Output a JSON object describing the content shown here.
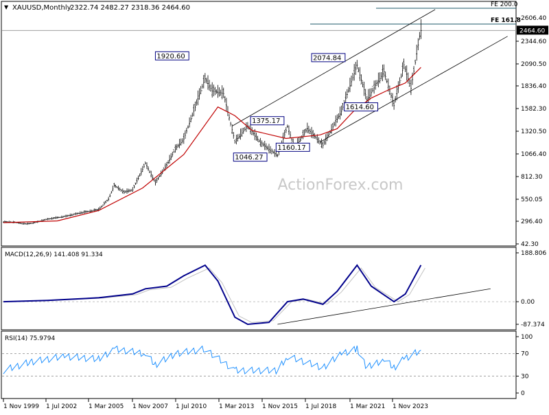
{
  "header": {
    "symbol_label": "XAUUSD,Monthly",
    "ohlc": "2322.74 2482.27 2318.36 2464.60",
    "dropdown_glyph": "▼"
  },
  "watermark": "ActionForex.com",
  "colors": {
    "background": "#ffffff",
    "frame": "#000000",
    "bars": "#000000",
    "ma": "#c00000",
    "channel": "#000000",
    "macd_line": "#00008b",
    "macd_signal": "#c0c0c0",
    "rsi_line": "#1e90ff",
    "level_dash": "#a0a0a0",
    "current_price_bg": "#000000",
    "current_price_fg": "#ffffff",
    "label_border": "#000080",
    "label_text": "#000000",
    "fe_line": "#1e5a6a",
    "watermark": "#c8c8c8"
  },
  "main_chart": {
    "y_ticks": [
      42.3,
      296.4,
      550.05,
      812.3,
      1066.4,
      1320.5,
      1582.3,
      1836.4,
      2090.5,
      2344.6,
      2606.4
    ],
    "y_tick_labels": [
      "42.30",
      "296.40",
      "550.05",
      "812.30",
      "1066.40",
      "1320.50",
      "1582.30",
      "1836.40",
      "2090.50",
      "2344.60",
      "2606.40"
    ],
    "current_price": "2464.60",
    "fe_200_label": "FE 200.0",
    "fe_161_label": "FE 161.8",
    "annotations": [
      "1920.60",
      "1375.17",
      "1046.27",
      "1160.17",
      "2074.84",
      "1614.60"
    ]
  },
  "macd_panel": {
    "label": "MACD(12,26,9) 141.408 91.334",
    "y_tick_labels": [
      "188.806",
      "0.00",
      "-87.374"
    ]
  },
  "rsi_panel": {
    "label": "RSI(14) 75.9794",
    "y_tick_labels": [
      "100",
      "70",
      "30",
      "0"
    ]
  },
  "x_axis": {
    "labels": [
      "1 Nov 1999",
      "1 Jul 2002",
      "1 Mar 2005",
      "1 Nov 2007",
      "1 Jul 2010",
      "1 Mar 2013",
      "1 Nov 2015",
      "1 Jul 2018",
      "1 Mar 2021",
      "1 Nov 2023"
    ]
  },
  "chart_data": {
    "type": "line",
    "title": "XAUUSD,Monthly",
    "x_labels": [
      "1 Nov 1999",
      "1 Jul 2002",
      "1 Mar 2005",
      "1 Nov 2007",
      "1 Jul 2010",
      "1 Mar 2013",
      "1 Nov 2015",
      "1 Jul 2018",
      "1 Mar 2021",
      "1 Nov 2023"
    ],
    "ylim": [
      42.3,
      2700
    ],
    "grid": false,
    "price_path": [
      [
        "1999-11",
        290
      ],
      [
        "2000-06",
        285
      ],
      [
        "2001-03",
        265
      ],
      [
        "2001-09",
        280
      ],
      [
        "2002-06",
        320
      ],
      [
        "2003-06",
        350
      ],
      [
        "2004-06",
        395
      ],
      [
        "2005-06",
        430
      ],
      [
        "2006-01",
        550
      ],
      [
        "2006-05",
        710
      ],
      [
        "2006-12",
        630
      ],
      [
        "2007-06",
        660
      ],
      [
        "2008-03",
        960
      ],
      [
        "2008-10",
        740
      ],
      [
        "2009-06",
        940
      ],
      [
        "2009-12",
        1120
      ],
      [
        "2010-06",
        1230
      ],
      [
        "2011-09",
        1920.6
      ],
      [
        "2012-02",
        1780
      ],
      [
        "2012-10",
        1750
      ],
      [
        "2013-06",
        1200
      ],
      [
        "2014-03",
        1380
      ],
      [
        "2014-12",
        1190
      ],
      [
        "2015-12",
        1046.27
      ],
      [
        "2016-07",
        1375.17
      ],
      [
        "2016-12",
        1130
      ],
      [
        "2017-09",
        1350
      ],
      [
        "2018-08",
        1160.17
      ],
      [
        "2019-09",
        1550
      ],
      [
        "2020-08",
        2074.84
      ],
      [
        "2021-03",
        1680
      ],
      [
        "2022-03",
        2000
      ],
      [
        "2022-10",
        1614.6
      ],
      [
        "2023-05",
        2080
      ],
      [
        "2023-10",
        1810
      ],
      [
        "2024-04",
        2400
      ],
      [
        "2024-05",
        2464.6
      ]
    ],
    "ma_path": [
      [
        "1999-11",
        280
      ],
      [
        "2003-01",
        300
      ],
      [
        "2005-06",
        420
      ],
      [
        "2008-01",
        680
      ],
      [
        "2010-06",
        1060
      ],
      [
        "2012-06",
        1600
      ],
      [
        "2013-06",
        1500
      ],
      [
        "2014-06",
        1330
      ],
      [
        "2016-06",
        1240
      ],
      [
        "2018-06",
        1280
      ],
      [
        "2019-06",
        1350
      ],
      [
        "2020-06",
        1560
      ],
      [
        "2021-06",
        1700
      ],
      [
        "2022-06",
        1790
      ],
      [
        "2023-06",
        1870
      ],
      [
        "2024-05",
        2050
      ]
    ],
    "channel_lines": [
      [
        [
          "2013-04",
          1380
        ],
        [
          "2025-03",
          2700
        ]
      ],
      [
        [
          "2018-06",
          1200
        ],
        [
          "2029-06",
          2400
        ]
      ]
    ],
    "macd_series": [
      [
        "1999-11",
        0
      ],
      [
        "2002-06",
        5
      ],
      [
        "2005-06",
        15
      ],
      [
        "2007-06",
        30
      ],
      [
        "2008-03",
        50
      ],
      [
        "2009-06",
        60
      ],
      [
        "2010-06",
        100
      ],
      [
        "2011-09",
        141
      ],
      [
        "2012-06",
        80
      ],
      [
        "2013-06",
        -60
      ],
      [
        "2014-03",
        -87.374
      ],
      [
        "2015-06",
        -80
      ],
      [
        "2016-07",
        0
      ],
      [
        "2017-06",
        10
      ],
      [
        "2018-08",
        -10
      ],
      [
        "2019-06",
        40
      ],
      [
        "2020-08",
        141
      ],
      [
        "2021-06",
        60
      ],
      [
        "2022-10",
        0
      ],
      [
        "2023-06",
        30
      ],
      [
        "2024-05",
        141.408
      ]
    ],
    "macd_trendline": [
      [
        "2015-12",
        -87.374
      ],
      [
        "2028-06",
        50
      ]
    ],
    "rsi_series": [
      [
        "1999-11",
        40
      ],
      [
        "2001-06",
        55
      ],
      [
        "2003-06",
        65
      ],
      [
        "2005-06",
        60
      ],
      [
        "2006-05",
        78
      ],
      [
        "2008-03",
        70
      ],
      [
        "2008-10",
        50
      ],
      [
        "2009-12",
        70
      ],
      [
        "2011-09",
        78
      ],
      [
        "2013-06",
        40
      ],
      [
        "2015-12",
        40
      ],
      [
        "2016-07",
        65
      ],
      [
        "2018-08",
        45
      ],
      [
        "2019-09",
        70
      ],
      [
        "2020-08",
        78
      ],
      [
        "2021-03",
        45
      ],
      [
        "2022-03",
        60
      ],
      [
        "2022-10",
        45
      ],
      [
        "2023-05",
        60
      ],
      [
        "2024-05",
        75.9794
      ]
    ]
  }
}
